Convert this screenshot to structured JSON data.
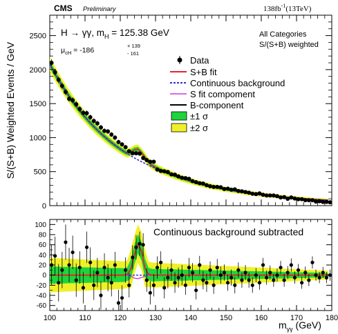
{
  "header": {
    "experiment": "CMS",
    "status": "Preliminary",
    "lumi_value": "138fb",
    "lumi_exponent": "-1",
    "lumi_energy": "(13TeV)"
  },
  "annotations": {
    "process_lead": "H → γγ, m",
    "process_sub": "H",
    "process_tail": " = 125.38 GeV",
    "mu_sym": "μ",
    "mu_sub": "cH",
    "mu_val": " = -186",
    "mu_up": "+ 139",
    "mu_down": "- 161",
    "category_line1": "All Categories",
    "category_line2": "S/(S+B) weighted",
    "lower_panel": "Continuous background subtracted"
  },
  "legend": [
    {
      "label": "Data",
      "marker": "point",
      "color": "#000000"
    },
    {
      "label": "S+B fit",
      "marker": "line",
      "color": "#e8202a"
    },
    {
      "label": "Continuous background",
      "marker": "dashed",
      "color": "#2b2bd6"
    },
    {
      "label": "S fit compoment",
      "marker": "line",
      "color": "#c838d8"
    },
    {
      "label": "B-component",
      "marker": "line",
      "color": "#000000"
    },
    {
      "label": "±1 σ",
      "marker": "box",
      "color": "#1ed43c"
    },
    {
      "label": "±2 σ",
      "marker": "box",
      "color": "#f0f02a"
    }
  ],
  "chart_data": [
    {
      "type": "scatter",
      "panel": "upper",
      "ylabel": "S/(S+B) Weighted Events / GeV",
      "xlim": [
        100,
        180
      ],
      "ylim": [
        0,
        2800
      ],
      "yticks": [
        0,
        500,
        1000,
        1500,
        2000,
        2500
      ],
      "grid": false,
      "legend_position": "top-right",
      "x": [
        100,
        101,
        102,
        103,
        104,
        105,
        106,
        107,
        108,
        109,
        110,
        111,
        112,
        113,
        114,
        115,
        116,
        117,
        118,
        119,
        120,
        121,
        122,
        123,
        124,
        125,
        126,
        127,
        128,
        129,
        130,
        131,
        132,
        133,
        134,
        135,
        136,
        137,
        138,
        139,
        140,
        141,
        142,
        143,
        144,
        145,
        146,
        147,
        148,
        149,
        150,
        151,
        152,
        153,
        154,
        155,
        156,
        157,
        158,
        159,
        160,
        161,
        162,
        163,
        164,
        165,
        166,
        167,
        168,
        169,
        170,
        171,
        172,
        173,
        174,
        175,
        176,
        177,
        178,
        179
      ],
      "series": [
        {
          "name": "Data",
          "values": [
            2100,
            1960,
            1850,
            1760,
            1670,
            1570,
            1550,
            1490,
            1420,
            1365,
            1360,
            1300,
            1245,
            1210,
            1150,
            1100,
            1090,
            1045,
            1000,
            935,
            900,
            860,
            800,
            770,
            770,
            765,
            700,
            670,
            645,
            645,
            530,
            510,
            505,
            495,
            460,
            455,
            430,
            410,
            405,
            395,
            360,
            345,
            330,
            325,
            300,
            285,
            275,
            275,
            270,
            245,
            250,
            235,
            240,
            215,
            210,
            200,
            190,
            175,
            170,
            180,
            160,
            150,
            150,
            150,
            140,
            120,
            125,
            100,
            120,
            105,
            95,
            95,
            80,
            80,
            80,
            60,
            65,
            55,
            55,
            50
          ]
        },
        {
          "name": "S+B fit",
          "values": [
            2080,
            1985,
            1893,
            1806,
            1723,
            1644,
            1569,
            1498,
            1430,
            1365,
            1304,
            1245,
            1189,
            1136,
            1086,
            1038,
            993,
            949,
            908,
            869,
            832,
            797,
            773,
            790,
            820,
            830,
            780,
            712,
            640,
            592,
            562,
            536,
            512,
            490,
            468,
            448,
            429,
            410,
            393,
            376,
            361,
            346,
            331,
            318,
            305,
            293,
            281,
            270,
            259,
            249,
            239,
            229,
            220,
            212,
            204,
            196,
            188,
            181,
            174,
            168,
            161,
            155,
            150,
            144,
            139,
            134,
            129,
            124,
            119,
            115,
            111,
            107,
            103,
            99,
            96,
            92,
            89,
            86,
            83,
            80
          ]
        },
        {
          "name": "Continuous background",
          "values": [
            2080,
            1985,
            1893,
            1806,
            1723,
            1644,
            1569,
            1498,
            1430,
            1365,
            1304,
            1245,
            1189,
            1136,
            1086,
            1038,
            993,
            949,
            908,
            869,
            832,
            797,
            763,
            732,
            702,
            673,
            646,
            620,
            595,
            571,
            549,
            527,
            507,
            487,
            468,
            448,
            429,
            410,
            393,
            376,
            361,
            346,
            331,
            318,
            305,
            293,
            281,
            270,
            259,
            249,
            239,
            229,
            220,
            212,
            204,
            196,
            188,
            181,
            174,
            168,
            161,
            155,
            150,
            144,
            139,
            134,
            129,
            124,
            119,
            115,
            111,
            107,
            103,
            99,
            96,
            92,
            89,
            86,
            83,
            80
          ]
        }
      ]
    },
    {
      "type": "scatter",
      "panel": "lower",
      "xlabel": "m_γγ (GeV)",
      "xlim": [
        100,
        180
      ],
      "ylim": [
        -70,
        110
      ],
      "yticks": [
        -60,
        -40,
        -20,
        0,
        20,
        40,
        60,
        80,
        100
      ],
      "xticks": [
        100,
        110,
        120,
        130,
        140,
        150,
        160,
        170,
        180
      ],
      "grid": false,
      "x": [
        100,
        101,
        102,
        103,
        104,
        105,
        106,
        107,
        108,
        109,
        110,
        111,
        112,
        113,
        114,
        115,
        116,
        117,
        118,
        119,
        120,
        121,
        122,
        123,
        124,
        125,
        126,
        127,
        128,
        129,
        130,
        131,
        132,
        133,
        134,
        135,
        136,
        137,
        138,
        139,
        140,
        141,
        142,
        143,
        144,
        145,
        146,
        147,
        148,
        149,
        150,
        151,
        152,
        153,
        154,
        155,
        156,
        157,
        158,
        159,
        160,
        161,
        162,
        163,
        164,
        165,
        166,
        167,
        168,
        169,
        170,
        171,
        172,
        173,
        174,
        175,
        176,
        177,
        178,
        179
      ],
      "series": [
        {
          "name": "Data",
          "values": [
            20,
            38,
            -15,
            10,
            65,
            20,
            45,
            -10,
            15,
            -25,
            55,
            25,
            -20,
            5,
            -40,
            15,
            -5,
            -15,
            20,
            -55,
            -45,
            10,
            -20,
            35,
            55,
            62,
            60,
            -10,
            -35,
            -20,
            15,
            25,
            -25,
            -5,
            10,
            -15,
            -5,
            0,
            -20,
            15,
            5,
            -30,
            20,
            -10,
            -15,
            10,
            -20,
            15,
            0,
            5,
            -15,
            -5,
            -20,
            10,
            -10,
            5,
            -10,
            -20,
            0,
            -15,
            20,
            -5,
            5,
            -10,
            0,
            15,
            -10,
            5,
            20,
            -5,
            10,
            -15,
            5,
            -10,
            25,
            0,
            -5,
            5,
            -5,
            0
          ],
          "errors": [
            40,
            38,
            37,
            36,
            35,
            34,
            33,
            33,
            32,
            31,
            31,
            30,
            29,
            29,
            28,
            28,
            27,
            27,
            26,
            26,
            25,
            25,
            24,
            24,
            24,
            24,
            23,
            23,
            23,
            22,
            22,
            22,
            21,
            21,
            21,
            20,
            20,
            20,
            19,
            19,
            19,
            18,
            18,
            18,
            18,
            17,
            17,
            17,
            17,
            16,
            16,
            16,
            16,
            15,
            15,
            15,
            15,
            15,
            14,
            14,
            14,
            14,
            14,
            13,
            13,
            13,
            13,
            13,
            13,
            12,
            12,
            12,
            12,
            12,
            12,
            11,
            11,
            11,
            11,
            11
          ]
        },
        {
          "name": "S+B fit",
          "values": [
            0,
            0,
            0,
            0,
            0,
            0,
            0,
            0,
            0,
            0,
            0,
            0,
            0,
            0,
            0,
            0,
            0,
            0,
            0,
            0,
            0,
            0,
            2,
            12,
            40,
            62,
            48,
            14,
            2,
            0,
            0,
            0,
            0,
            0,
            0,
            0,
            0,
            0,
            0,
            0,
            0,
            0,
            0,
            0,
            0,
            0,
            0,
            0,
            0,
            0,
            0,
            0,
            0,
            0,
            0,
            0,
            0,
            0,
            0,
            0,
            0,
            0,
            0,
            0,
            0,
            0,
            0,
            0,
            0,
            0,
            0,
            0,
            0,
            0,
            0,
            0,
            0,
            0,
            0,
            0
          ]
        },
        {
          "name": "S fit compoment",
          "values": [
            0,
            0,
            0,
            0,
            0,
            0,
            0,
            0,
            0,
            0,
            0,
            0,
            0,
            0,
            0,
            0,
            0,
            0,
            0,
            0,
            0,
            0,
            -0.5,
            -2,
            -6,
            -7,
            -5,
            -2,
            -0.5,
            0,
            0,
            0,
            0,
            0,
            0,
            0,
            0,
            0,
            0,
            0,
            0,
            0,
            0,
            0,
            0,
            0,
            0,
            0,
            0,
            0,
            0,
            0,
            0,
            0,
            0,
            0,
            0,
            0,
            0,
            0,
            0,
            0,
            0,
            0,
            0,
            0,
            0,
            0,
            0,
            0,
            0,
            0,
            0,
            0,
            0,
            0,
            0,
            0,
            0,
            0
          ]
        }
      ]
    }
  ]
}
